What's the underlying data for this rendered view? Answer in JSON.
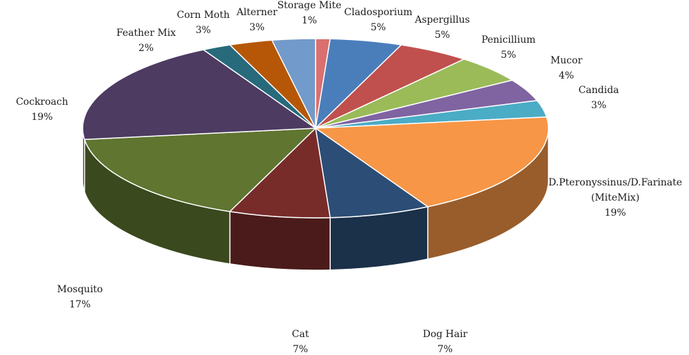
{
  "chart_data": {
    "type": "pie",
    "title": "",
    "slices": [
      {
        "label": "Storage Mite",
        "pct_label": "1%",
        "value": 1,
        "color": "#d9706f"
      },
      {
        "label": "Cladosporium",
        "pct_label": "5%",
        "value": 5,
        "color": "#4a7ebb"
      },
      {
        "label": "Aspergillus",
        "pct_label": "5%",
        "value": 5,
        "color": "#c0504d"
      },
      {
        "label": "Penicillium",
        "pct_label": "5%",
        "value": 5,
        "color": "#9bbb59"
      },
      {
        "label": "Mucor",
        "pct_label": "4%",
        "value": 4,
        "color": "#8064a2"
      },
      {
        "label": "Candida",
        "pct_label": "3%",
        "value": 3,
        "color": "#4bacc6"
      },
      {
        "label": "D.Pteronyssinus/D.Farinate",
        "label2": "(MiteMix)",
        "pct_label": "19%",
        "value": 19,
        "color": "#f79646"
      },
      {
        "label": "Dog Hair",
        "pct_label": "7%",
        "value": 7,
        "color": "#2c4d75"
      },
      {
        "label": "Cat",
        "pct_label": "7%",
        "value": 7,
        "color": "#772c2a"
      },
      {
        "label": "Mosquito",
        "pct_label": "17%",
        "value": 17,
        "color": "#5f7530"
      },
      {
        "label": "Cockroach",
        "pct_label": "19%",
        "value": 19,
        "color": "#4d3b62"
      },
      {
        "label": "Feather Mix",
        "pct_label": "2%",
        "value": 2,
        "color": "#276a7c"
      },
      {
        "label": "Corn Moth",
        "pct_label": "3%",
        "value": 3,
        "color": "#b65708"
      },
      {
        "label": "Alterner",
        "pct_label": "3%",
        "value": 3,
        "color": "#729aca"
      }
    ]
  }
}
